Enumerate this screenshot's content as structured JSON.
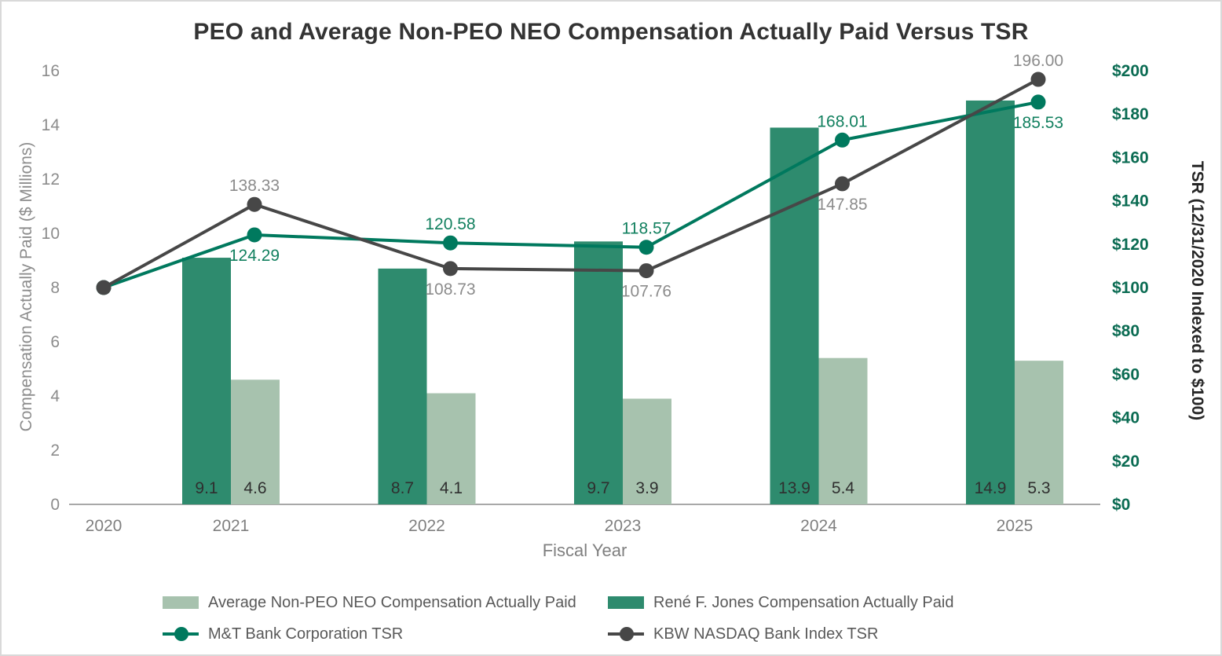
{
  "chart_data": {
    "type": "combo",
    "title": "PEO and Average Non-PEO NEO Compensation Actually Paid Versus TSR",
    "x_axis": {
      "label": "Fiscal Year",
      "categories": [
        "2020",
        "2021",
        "2022",
        "2023",
        "2024",
        "2025"
      ]
    },
    "left_axis": {
      "label": "Compensation Actually Paid ($ Millions)",
      "min": 0,
      "max": 16,
      "tick_step": 2,
      "ticks": [
        "0",
        "2",
        "4",
        "6",
        "8",
        "10",
        "12",
        "14",
        "16"
      ]
    },
    "right_axis": {
      "label": "TSR (12/31/2020 Indexed to $100)",
      "min": 0,
      "max": 200,
      "tick_step": 20,
      "ticks": [
        "$0",
        "$20",
        "$40",
        "$60",
        "$80",
        "$100",
        "$120",
        "$140",
        "$160",
        "$180",
        "$200"
      ]
    },
    "bar_series": [
      {
        "name": "René F. Jones Compensation Actually Paid",
        "color": "#2e8b6e",
        "categories": [
          "2021",
          "2022",
          "2023",
          "2024",
          "2025"
        ],
        "values": [
          9.1,
          8.7,
          9.7,
          13.9,
          14.9
        ],
        "labels": [
          "9.1",
          "8.7",
          "9.7",
          "13.9",
          "14.9"
        ]
      },
      {
        "name": "Average Non-PEO NEO Compensation Actually Paid",
        "color": "#a7c2ae",
        "categories": [
          "2021",
          "2022",
          "2023",
          "2024",
          "2025"
        ],
        "values": [
          4.6,
          4.1,
          3.9,
          5.4,
          5.3
        ],
        "labels": [
          "4.6",
          "4.1",
          "3.9",
          "5.4",
          "5.3"
        ]
      }
    ],
    "line_series": [
      {
        "name": "M&T Bank Corporation TSR",
        "color": "#00795e",
        "label_color": "#12805f",
        "x": [
          "2020",
          "2021",
          "2022",
          "2023",
          "2024",
          "2025"
        ],
        "values": [
          100,
          124.29,
          120.58,
          118.57,
          168.01,
          185.53
        ],
        "point_labels": [
          "",
          "124.29",
          "120.58",
          "118.57",
          "168.01",
          "185.53"
        ],
        "label_positions": [
          "none",
          "below",
          "above",
          "above",
          "above",
          "below"
        ]
      },
      {
        "name": "KBW NASDAQ Bank Index TSR",
        "color": "#474747",
        "label_color": "#8c8c8c",
        "x": [
          "2020",
          "2021",
          "2022",
          "2023",
          "2024",
          "2025"
        ],
        "values": [
          100,
          138.33,
          108.73,
          107.76,
          147.85,
          196.0
        ],
        "point_labels": [
          "",
          "138.33",
          "108.73",
          "107.76",
          "147.85",
          "196.00"
        ],
        "label_positions": [
          "none",
          "above",
          "below",
          "below",
          "below",
          "above"
        ]
      }
    ],
    "legend": [
      {
        "label": "Average Non-PEO NEO Compensation Actually Paid",
        "swatch": "bar",
        "color": "#a7c2ae"
      },
      {
        "label": "René F. Jones Compensation Actually Paid",
        "swatch": "bar",
        "color": "#2e8b6e"
      },
      {
        "label": "M&T Bank Corporation TSR",
        "swatch": "line-dot",
        "color": "#00795e"
      },
      {
        "label": "KBW NASDAQ Bank Index TSR",
        "swatch": "line-dot",
        "color": "#474747"
      }
    ],
    "legend_position": "bottom",
    "grid": false,
    "bar_value_label_color": "#2f2f2f",
    "left_tick_color": "#8c8c8c",
    "right_tick_color": "#0a6b52",
    "x_tick_color": "#7f7f7f"
  }
}
